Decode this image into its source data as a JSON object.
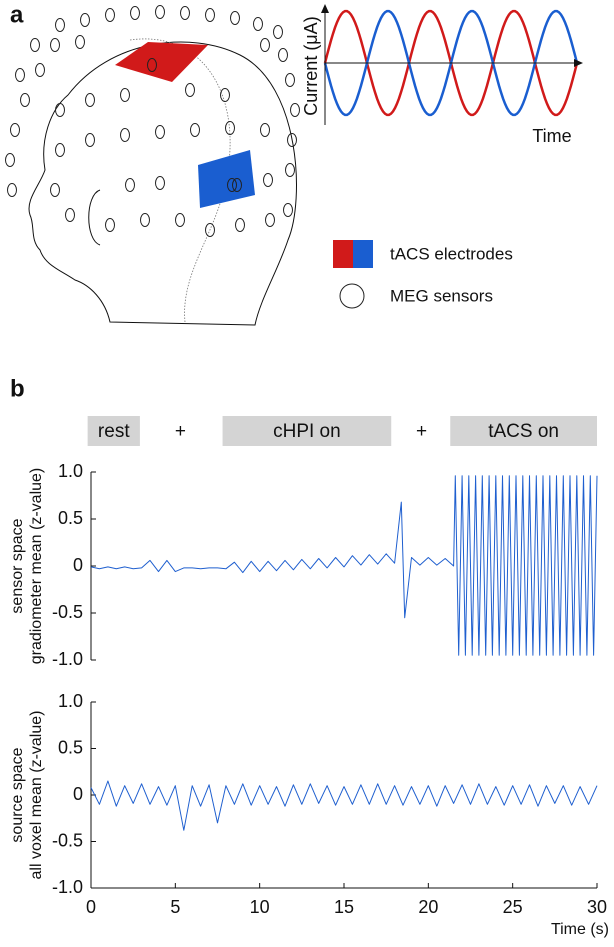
{
  "diagram": {
    "label": "a",
    "y_label": "Current (μA)",
    "x_label": "Time",
    "legend": [
      "tACS electrodes",
      "MEG sensors"
    ]
  },
  "panel_b_label": "b",
  "chart_data": [
    {
      "type": "line",
      "y_label": [
        "sensor space",
        "gradiometer mean (z-value)"
      ],
      "color": "#1f5fcf",
      "xlim": [
        0,
        30
      ],
      "ylim": [
        -1,
        1
      ],
      "yticks": [
        {
          "value": -1,
          "label": "-1.0"
        },
        -0.5,
        0,
        0.5,
        {
          "value": 1,
          "label": "1.0"
        }
      ],
      "annotations": [
        {
          "label": "rest",
          "start": -0.2,
          "end": 2.9
        },
        {
          "label": "+",
          "x": 5.3
        },
        {
          "label": "cHPI on",
          "start": 7.8,
          "end": 17.8
        },
        {
          "label": "+",
          "x": 19.6
        },
        {
          "label": "tACS on",
          "start": 21.3,
          "end": 30
        }
      ],
      "x": [
        0,
        0.5,
        1,
        1.5,
        2,
        2.5,
        3,
        3.5,
        4,
        4.5,
        5,
        5.5,
        6,
        6.5,
        7,
        7.5,
        8,
        8.5,
        9,
        9.5,
        10,
        10.5,
        11,
        11.5,
        12,
        12.5,
        13,
        13.5,
        14,
        14.5,
        15,
        15.5,
        16,
        16.5,
        17,
        17.5,
        18,
        18.4,
        18.6,
        19,
        19.5,
        20,
        20.5,
        21,
        21.5,
        21.6,
        21.8,
        22,
        22.2,
        22.4,
        22.6,
        22.8,
        23,
        23.2,
        23.4,
        23.6,
        23.8,
        24,
        24.2,
        24.4,
        24.6,
        24.8,
        25,
        25.2,
        25.4,
        25.6,
        25.8,
        26,
        26.2,
        26.4,
        26.6,
        26.8,
        27,
        27.2,
        27.4,
        27.6,
        27.8,
        28,
        28.2,
        28.4,
        28.6,
        28.8,
        29,
        29.2,
        29.4,
        29.6,
        29.8,
        30
      ],
      "values": [
        -0.01,
        -0.03,
        -0.01,
        -0.03,
        -0.01,
        -0.03,
        -0.02,
        0.06,
        -0.06,
        0.06,
        -0.06,
        -0.02,
        -0.02,
        -0.03,
        -0.02,
        -0.02,
        -0.03,
        0.04,
        -0.07,
        0.05,
        -0.06,
        0.05,
        -0.05,
        0.06,
        -0.04,
        0.07,
        -0.03,
        0.08,
        -0.02,
        0.09,
        -0.01,
        0.11,
        0.01,
        0.12,
        0.02,
        0.13,
        0.03,
        0.68,
        -0.55,
        0.09,
        0.01,
        0.09,
        0.01,
        0.08,
        0,
        0.96,
        -0.95,
        0.96,
        -0.95,
        0.96,
        -0.95,
        0.96,
        -0.95,
        0.96,
        -0.95,
        0.96,
        -0.95,
        0.96,
        -0.95,
        0.96,
        -0.95,
        0.96,
        -0.95,
        0.96,
        -0.95,
        0.96,
        -0.95,
        0.96,
        -0.95,
        0.96,
        -0.95,
        0.96,
        -0.95,
        0.96,
        -0.95,
        0.96,
        -0.95,
        0.96,
        -0.95,
        0.96,
        -0.95,
        0.96,
        -0.95,
        0.96,
        -0.95,
        0.96,
        -0.95,
        0.96
      ]
    },
    {
      "type": "line",
      "y_label": [
        "source space",
        "all voxel mean (z-value)"
      ],
      "x_label": "Time (s)",
      "color": "#1f5fcf",
      "xlim": [
        0,
        30
      ],
      "ylim": [
        -1,
        1
      ],
      "xticks": [
        0,
        5,
        10,
        15,
        20,
        25,
        30
      ],
      "yticks": [
        {
          "value": -1,
          "label": "-1.0"
        },
        -0.5,
        0,
        0.5,
        {
          "value": 1,
          "label": "1.0"
        }
      ],
      "x": [
        0,
        0.5,
        1,
        1.5,
        2,
        2.5,
        3,
        3.5,
        4,
        4.5,
        5,
        5.5,
        6,
        6.5,
        7,
        7.5,
        8,
        8.5,
        9,
        9.5,
        10,
        10.5,
        11,
        11.5,
        12,
        12.5,
        13,
        13.5,
        14,
        14.5,
        15,
        15.5,
        16,
        16.5,
        17,
        17.5,
        18,
        18.5,
        19,
        19.5,
        20,
        20.5,
        21,
        21.5,
        22,
        22.5,
        23,
        23.5,
        24,
        24.5,
        25,
        25.5,
        26,
        26.5,
        27,
        27.5,
        28,
        28.5,
        29,
        29.5,
        30
      ],
      "values": [
        0.08,
        -0.1,
        0.15,
        -0.12,
        0.1,
        -0.09,
        0.12,
        -0.1,
        0.09,
        -0.11,
        0.1,
        -0.38,
        0.1,
        -0.12,
        0.11,
        -0.3,
        0.1,
        -0.1,
        0.12,
        -0.11,
        0.1,
        -0.1,
        0.09,
        -0.12,
        0.11,
        -0.1,
        0.12,
        -0.09,
        0.1,
        -0.11,
        0.09,
        -0.1,
        0.11,
        -0.1,
        0.12,
        -0.1,
        0.1,
        -0.11,
        0.09,
        -0.1,
        0.1,
        -0.12,
        0.1,
        -0.09,
        0.11,
        -0.1,
        0.12,
        -0.1,
        0.09,
        -0.11,
        0.1,
        -0.1,
        0.11,
        -0.12,
        0.1,
        -0.09,
        0.1,
        -0.11,
        0.09,
        -0.1,
        0.1
      ]
    }
  ]
}
